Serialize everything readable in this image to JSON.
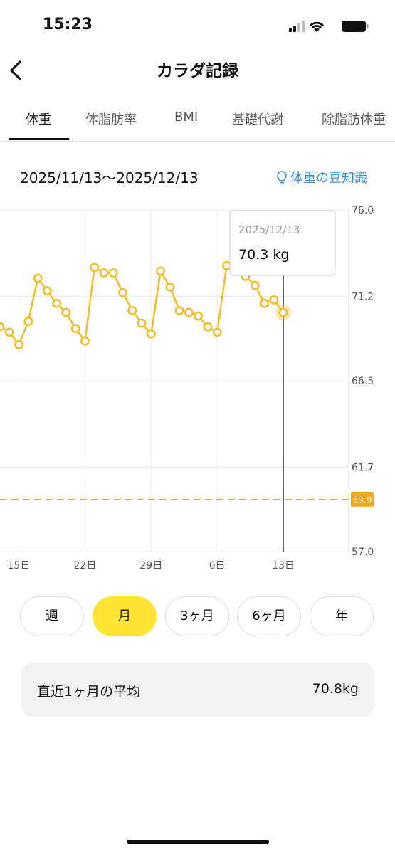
{
  "status_bar": {
    "time": "15:23"
  },
  "header": {
    "title": "カラダ記録"
  },
  "tabs": [
    "体重",
    "体脂肪率",
    "BMI",
    "基礎代謝",
    "除脂肪体重"
  ],
  "active_tab": "体重",
  "date_range": "2025/11/13〜2025/12/13",
  "tips_link": "体重の豆知識",
  "chart_data": {
    "type": "line",
    "categories": [
      null,
      null,
      "15日",
      null,
      null,
      null,
      null,
      null,
      null,
      "22日",
      null,
      null,
      null,
      null,
      null,
      null,
      "29日",
      null,
      null,
      null,
      null,
      null,
      null,
      "6日",
      null,
      null,
      null,
      null,
      null,
      null,
      "13日"
    ],
    "values": [
      69.5,
      69.2,
      68.5,
      69.8,
      72.2,
      71.5,
      70.8,
      70.3,
      69.4,
      68.7,
      72.8,
      72.5,
      72.5,
      71.4,
      70.4,
      69.7,
      69.1,
      72.6,
      71.7,
      70.4,
      70.3,
      70.1,
      69.5,
      69.2,
      72.9,
      72.6,
      72.3,
      71.8,
      70.8,
      71.0,
      70.3
    ],
    "color": "#f2bc2a",
    "ylim": [
      57,
      76
    ],
    "yticks": [
      {
        "value": 57,
        "label": "57.0"
      },
      61.7,
      66.5,
      71.2,
      {
        "value": 76,
        "label": "76.0"
      }
    ],
    "grid": true,
    "reference_line": {
      "value": 59.9,
      "color": "#f0a81e"
    },
    "tooltip": {
      "date": "2025/12/13",
      "label": "70.3 kg"
    }
  },
  "periods": [
    "週",
    "月",
    "3ヶ月",
    "6ヶ月",
    "年"
  ],
  "active_period": "月",
  "summary": {
    "label": "直近1ヶ月の平均",
    "value": "70.8kg"
  }
}
